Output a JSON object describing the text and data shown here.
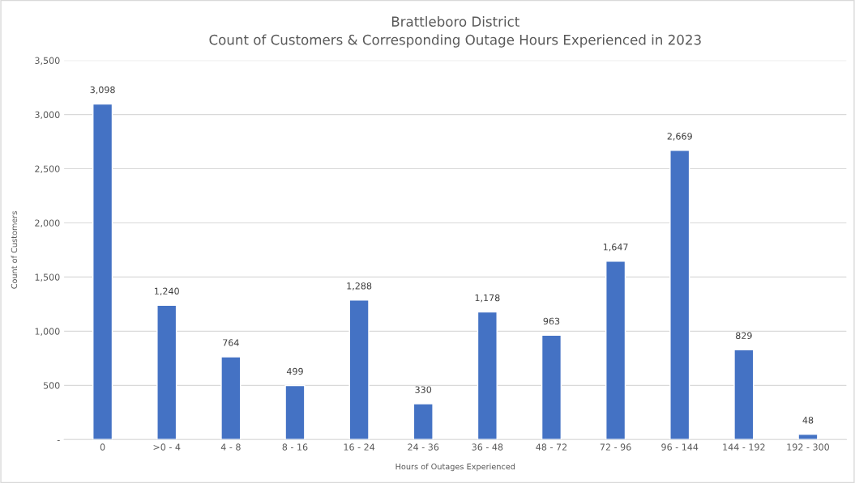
{
  "chart_data": {
    "type": "bar",
    "title": "Brattleboro District\nCount of Customers & Corresponding Outage Hours Experienced in 2023",
    "xlabel": "Hours of Outages Experienced",
    "ylabel": "Count of Customers",
    "categories": [
      "0",
      ">0 - 4",
      "4 - 8",
      "8 - 16",
      "16 - 24",
      "24 - 36",
      "36 - 48",
      "48 - 72",
      "72 - 96",
      "96 - 144",
      "144 - 192",
      "192 - 300"
    ],
    "values": [
      3098,
      1240,
      764,
      499,
      1288,
      330,
      1178,
      963,
      1647,
      2669,
      829,
      48
    ],
    "value_labels": [
      "3,098",
      "1,240",
      "764",
      "499",
      "1,288",
      "330",
      "1,178",
      "963",
      "1,647",
      "2,669",
      "829",
      "48"
    ],
    "color": "#4472c4",
    "ylim": [
      0,
      3500
    ],
    "yticks": [
      {
        "value": 0,
        "label": "-"
      },
      {
        "value": 500,
        "label": "500"
      },
      {
        "value": 1000,
        "label": "1,000"
      },
      {
        "value": 1500,
        "label": "1,500"
      },
      {
        "value": 2000,
        "label": "2,000"
      },
      {
        "value": 2500,
        "label": "2,500"
      },
      {
        "value": 3000,
        "label": "3,000"
      },
      {
        "value": 3500,
        "label": "3,500"
      }
    ],
    "grid": "y"
  }
}
